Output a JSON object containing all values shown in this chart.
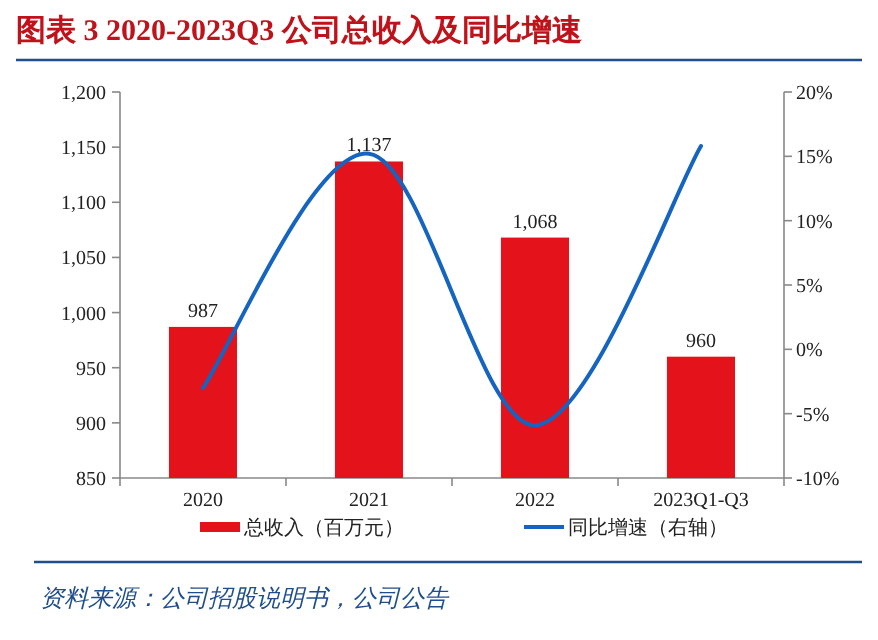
{
  "chart_data": {
    "type": "bar",
    "title": "图表 3   2020-2023Q3 公司总收入及同比增速",
    "categories": [
      "2020",
      "2021",
      "2022",
      "2023Q1-Q3"
    ],
    "series": [
      {
        "name": "总收入（百万元）",
        "color": "#e3121b",
        "values": [
          987,
          1137,
          1068,
          960
        ],
        "value_labels": [
          "987",
          "1,137",
          "1,068",
          "960"
        ]
      },
      {
        "name": "同比增速（右轴）",
        "type": "line",
        "axis": "y2",
        "color": "#1565c0",
        "values": [
          -3.0,
          15.2,
          -5.9,
          15.8
        ],
        "marker": "none",
        "line_style": "solid"
      }
    ],
    "ylim": [
      850,
      1200
    ],
    "yticks": [
      {
        "value": 850,
        "label": "850"
      },
      {
        "value": 900,
        "label": "900"
      },
      {
        "value": 950,
        "label": "950"
      },
      {
        "value": 1000,
        "label": "1,000"
      },
      {
        "value": 1050,
        "label": "1,050"
      },
      {
        "value": 1100,
        "label": "1,100"
      },
      {
        "value": 1150,
        "label": "1,150"
      },
      {
        "value": 1200,
        "label": "1,200"
      }
    ],
    "y2lim": [
      -10,
      20
    ],
    "y2ticks": [
      {
        "value": -10,
        "label": "-10%"
      },
      {
        "value": -5,
        "label": "-5%"
      },
      {
        "value": 0,
        "label": "0%"
      },
      {
        "value": 5,
        "label": "5%"
      },
      {
        "value": 10,
        "label": "10%"
      },
      {
        "value": 15,
        "label": "15%"
      },
      {
        "value": 20,
        "label": "20%"
      }
    ],
    "grid": false,
    "legend": "bottom",
    "annotations": [
      "资料来源：公司招股说明书，公司公告"
    ]
  }
}
